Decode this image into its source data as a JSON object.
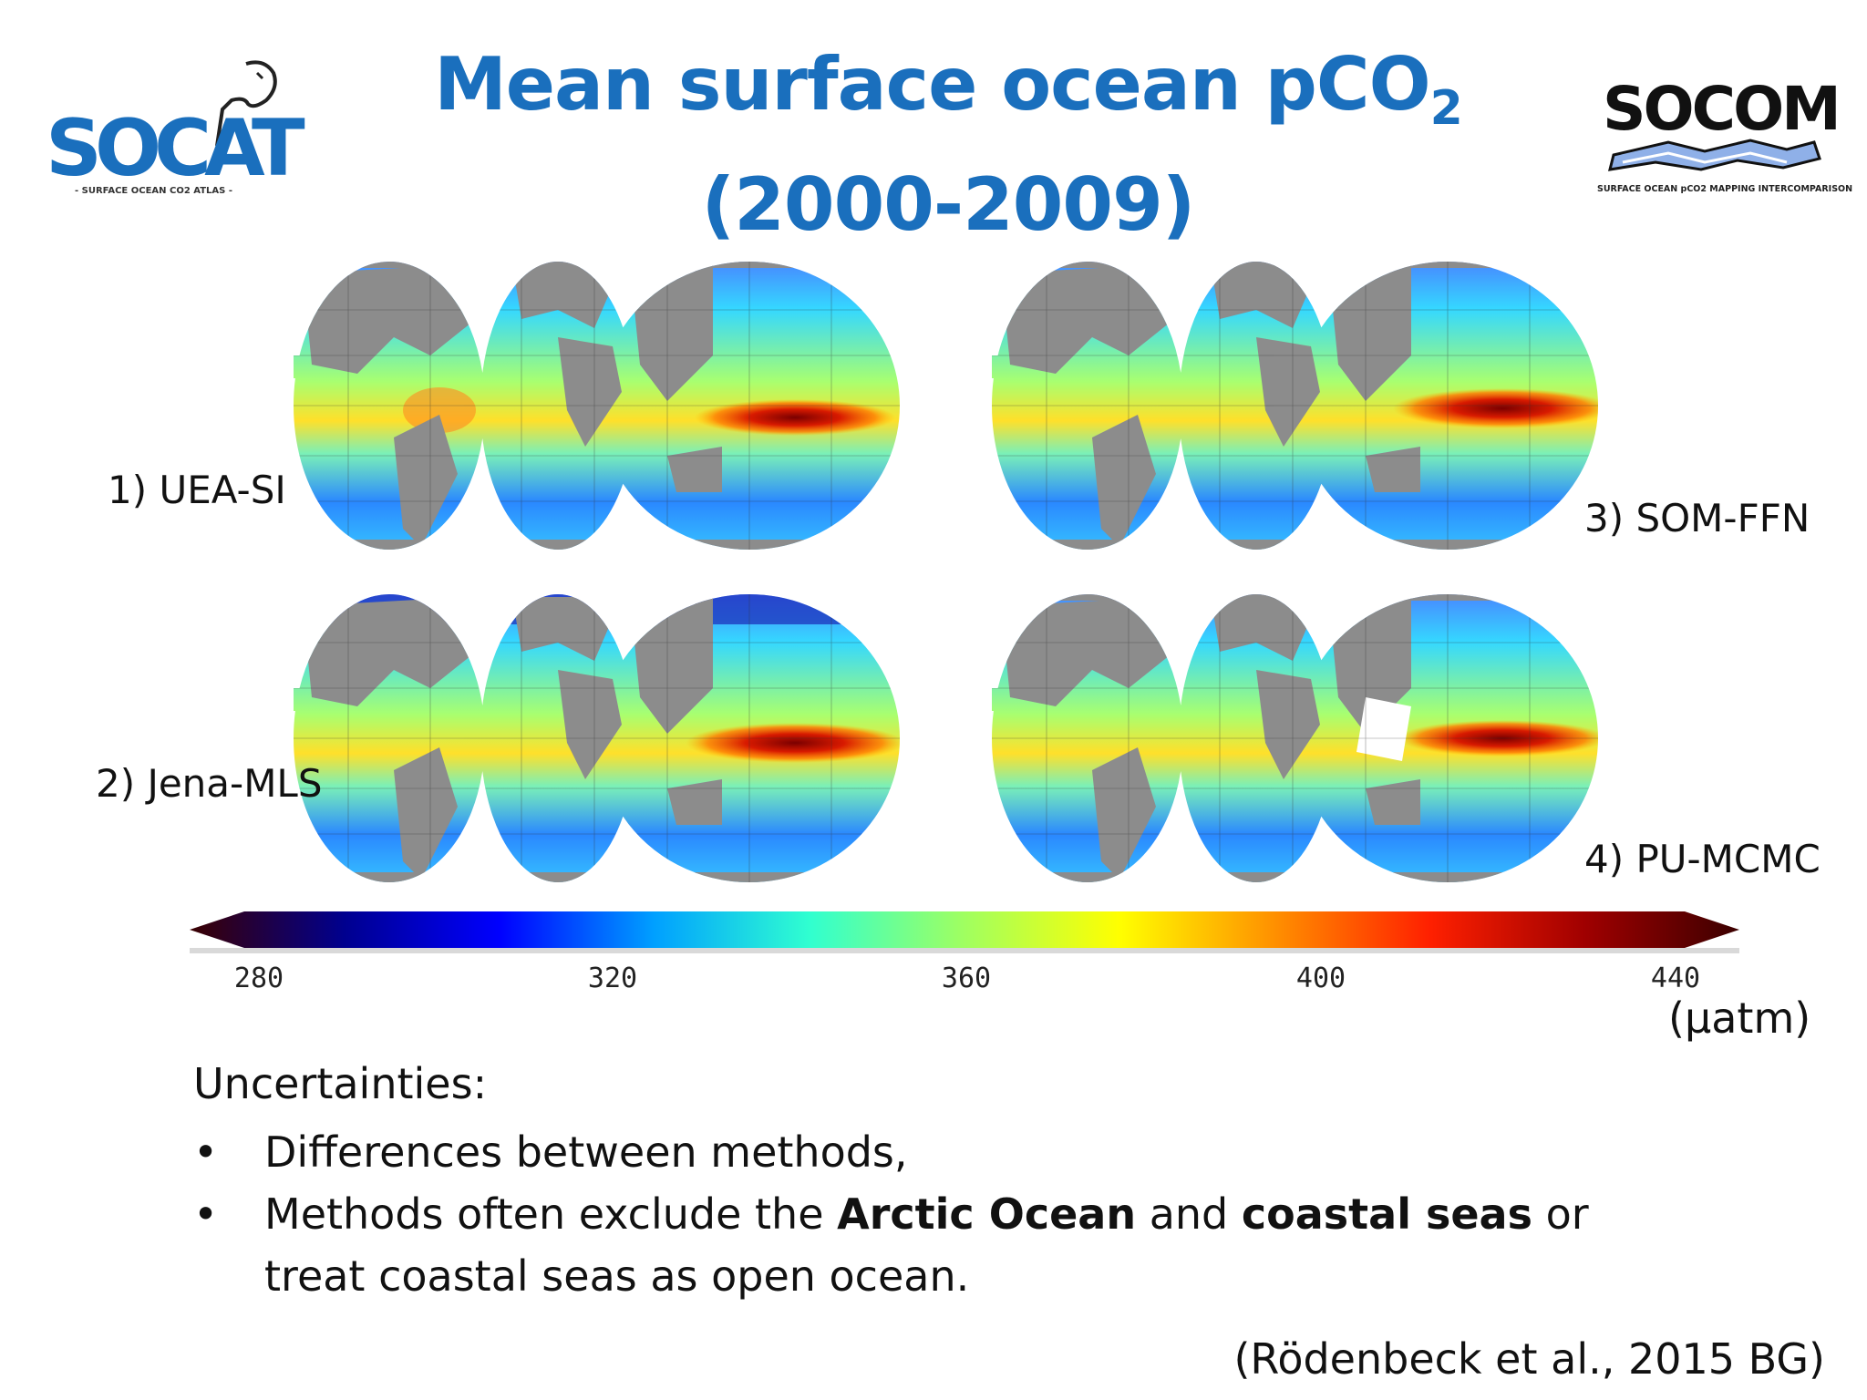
{
  "title": {
    "line1_main": "Mean surface ocean pCO",
    "line1_sub": "2",
    "line2": "(2000-2009)"
  },
  "logos": {
    "left": {
      "text": "SOCAT",
      "caption": "- SURFACE OCEAN CO2 ATLAS -"
    },
    "right": {
      "text": "SOCOM",
      "caption": "SURFACE OCEAN pCO2 MAPPING INTERCOMPARISON"
    }
  },
  "maps": [
    {
      "label": "1) UEA-SI"
    },
    {
      "label": "2) Jena-MLS"
    },
    {
      "label": "3) SOM-FFN"
    },
    {
      "label": "4) PU-MCMC"
    }
  ],
  "colorbar": {
    "ticks": [
      "280",
      "320",
      "360",
      "400",
      "440"
    ],
    "range": [
      280,
      440
    ],
    "unit": "(µatm)",
    "colors": [
      "#3b0000",
      "#00008f",
      "#0000ff",
      "#00a0ff",
      "#30ffd0",
      "#a0ff60",
      "#ffff00",
      "#ff9000",
      "#ff2000",
      "#a00000",
      "#3b0000"
    ]
  },
  "uncertainties": {
    "heading": "Uncertainties:",
    "bullet1": "Differences between methods,",
    "bullet2": {
      "t1": "Methods often exclude the ",
      "b1": "Arctic Ocean",
      "t2": " and ",
      "b2": "coastal seas",
      "t3": " or treat coastal seas as open ocean."
    }
  },
  "citation": "(Rödenbeck et al., 2015 BG)"
}
